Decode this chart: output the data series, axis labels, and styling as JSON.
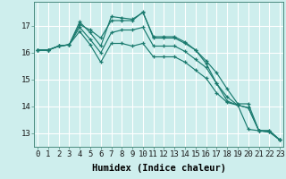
{
  "title": "",
  "xlabel": "Humidex (Indice chaleur)",
  "bg_color": "#ceeeed",
  "grid_color": "#ffffff",
  "line_color": "#1a7a6e",
  "x_values": [
    0,
    1,
    2,
    3,
    4,
    5,
    6,
    7,
    8,
    9,
    10,
    11,
    12,
    13,
    14,
    15,
    16,
    17,
    18,
    19,
    20,
    21,
    22,
    23
  ],
  "series": [
    [
      16.1,
      16.1,
      16.25,
      16.3,
      17.05,
      16.85,
      16.55,
      17.2,
      17.2,
      17.2,
      17.52,
      16.55,
      16.55,
      16.55,
      16.35,
      16.1,
      15.7,
      15.25,
      14.65,
      14.1,
      14.1,
      13.1,
      13.1,
      12.75
    ],
    [
      16.1,
      16.1,
      16.25,
      16.3,
      17.15,
      16.75,
      16.25,
      17.35,
      17.3,
      17.25,
      17.5,
      16.6,
      16.6,
      16.6,
      16.4,
      16.1,
      15.6,
      14.85,
      14.2,
      14.05,
      13.15,
      13.1,
      13.05,
      12.75
    ],
    [
      16.1,
      16.1,
      16.25,
      16.3,
      16.95,
      16.5,
      16.0,
      16.75,
      16.85,
      16.85,
      16.95,
      16.25,
      16.25,
      16.25,
      16.05,
      15.75,
      15.45,
      14.85,
      14.35,
      14.05,
      13.95,
      13.1,
      13.1,
      12.75
    ],
    [
      16.1,
      16.1,
      16.25,
      16.3,
      16.8,
      16.3,
      15.65,
      16.35,
      16.35,
      16.25,
      16.35,
      15.85,
      15.85,
      15.85,
      15.65,
      15.35,
      15.05,
      14.5,
      14.15,
      14.05,
      13.95,
      13.1,
      13.05,
      12.75
    ]
  ],
  "ylim": [
    12.5,
    17.9
  ],
  "yticks": [
    13,
    14,
    15,
    16,
    17
  ],
  "xticks": [
    0,
    1,
    2,
    3,
    4,
    5,
    6,
    7,
    8,
    9,
    10,
    11,
    12,
    13,
    14,
    15,
    16,
    17,
    18,
    19,
    20,
    21,
    22,
    23
  ],
  "xlabel_fontsize": 7.5,
  "tick_fontsize": 6.5
}
